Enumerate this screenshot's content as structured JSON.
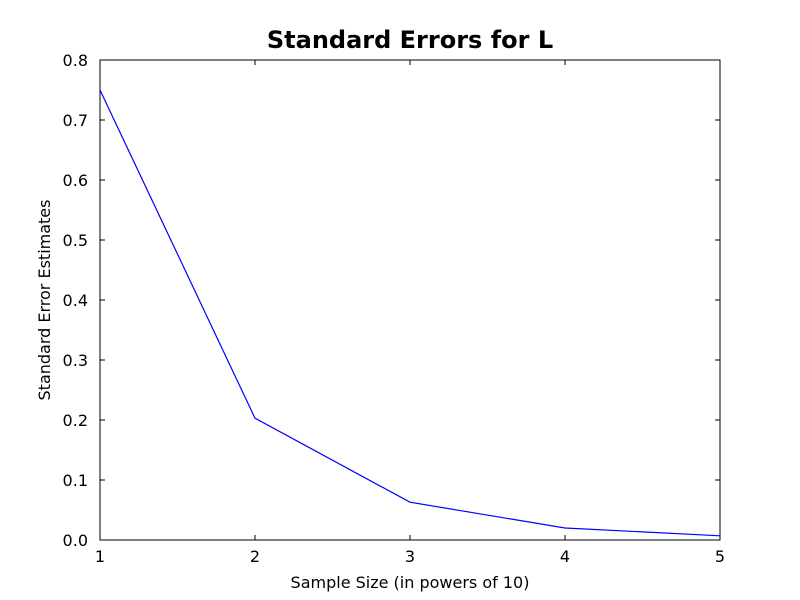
{
  "chart_data": {
    "type": "line",
    "title": "Standard Errors for L",
    "xlabel": "Sample Size (in powers of 10)",
    "ylabel": "Standard Error Estimates",
    "x": [
      1,
      2,
      3,
      4,
      5
    ],
    "series": [
      {
        "values": [
          0.75,
          0.203,
          0.063,
          0.02,
          0.007
        ],
        "color": "#0000ff"
      }
    ],
    "xlim": [
      1,
      5
    ],
    "ylim": [
      0,
      0.8
    ],
    "xticks": [
      1,
      2,
      3,
      4,
      5
    ],
    "xtick_labels": [
      "1",
      "2",
      "3",
      "4",
      "5"
    ],
    "yticks": [
      0,
      0.1,
      0.2,
      0.3,
      0.4,
      0.5,
      0.6,
      0.7,
      0.8
    ],
    "ytick_labels": [
      "0.0",
      "0.1",
      "0.2",
      "0.3",
      "0.4",
      "0.5",
      "0.6",
      "0.7",
      "0.8"
    ],
    "grid": false,
    "legend": "none"
  }
}
